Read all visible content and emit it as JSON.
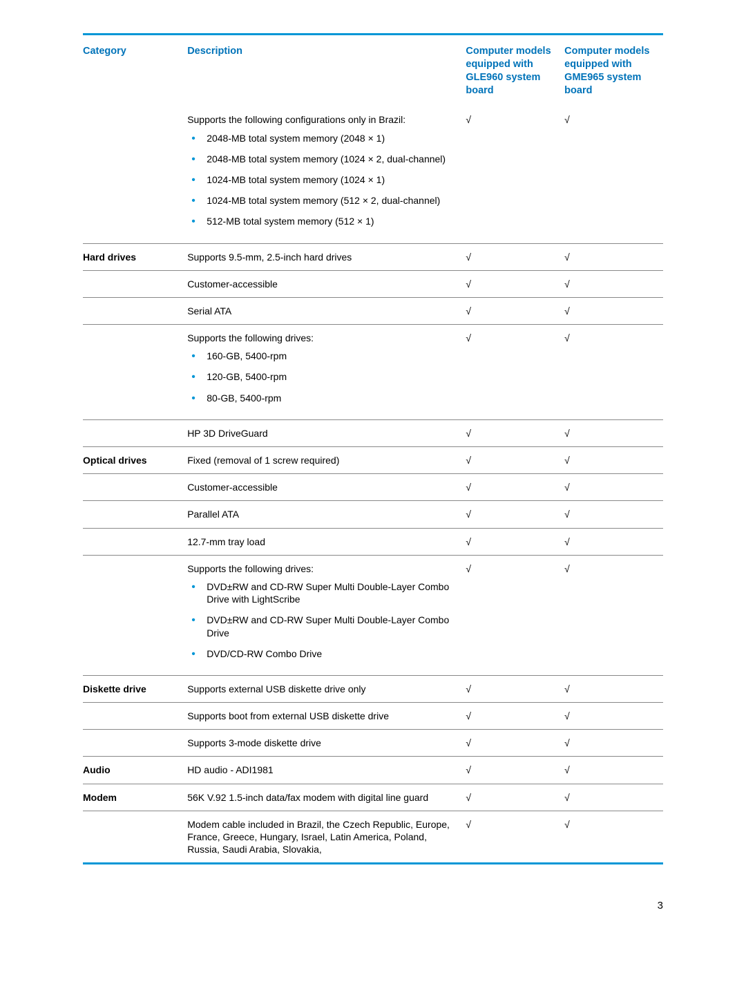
{
  "colors": {
    "accent": "#0096d6",
    "header_text": "#0073b9",
    "border_gray": "#888888",
    "text": "#000000",
    "background": "#ffffff"
  },
  "check_mark": "√",
  "headers": {
    "category": "Category",
    "description": "Description",
    "model1": "Computer models equipped with GLE960 system board",
    "model2": "Computer models equipped with GME965 system board"
  },
  "rows": [
    {
      "category": "",
      "desc": "Supports the following configurations only in Brazil:",
      "bullets": [
        "2048-MB total system memory (2048 × 1)",
        "2048-MB total system memory (1024 × 2, dual-channel)",
        "1024-MB total system memory (1024 × 1)",
        "1024-MB total system memory (512 × 2, dual-channel)",
        "512-MB total system memory (512 × 1)"
      ],
      "m1": "√",
      "m2": "√",
      "sep": false
    },
    {
      "category": "Hard drives",
      "desc": "Supports 9.5-mm, 2.5-inch hard drives",
      "m1": "√",
      "m2": "√",
      "sep": true
    },
    {
      "category": "",
      "desc": "Customer-accessible",
      "m1": "√",
      "m2": "√",
      "sep": true
    },
    {
      "category": "",
      "desc": "Serial ATA",
      "m1": "√",
      "m2": "√",
      "sep": true
    },
    {
      "category": "",
      "desc": "Supports the following drives:",
      "bullets": [
        "160-GB, 5400-rpm",
        "120-GB, 5400-rpm",
        "80-GB, 5400-rpm"
      ],
      "m1": "√",
      "m2": "√",
      "sep": true
    },
    {
      "category": "",
      "desc": "HP 3D DriveGuard",
      "m1": "√",
      "m2": "√",
      "sep": true
    },
    {
      "category": "Optical drives",
      "desc": "Fixed (removal of 1 screw required)",
      "m1": "√",
      "m2": "√",
      "sep": true
    },
    {
      "category": "",
      "desc": "Customer-accessible",
      "m1": "√",
      "m2": "√",
      "sep": true
    },
    {
      "category": "",
      "desc": "Parallel ATA",
      "m1": "√",
      "m2": "√",
      "sep": true
    },
    {
      "category": "",
      "desc": "12.7-mm tray load",
      "m1": "√",
      "m2": "√",
      "sep": true
    },
    {
      "category": "",
      "desc": "Supports the following drives:",
      "bullets": [
        "DVD±RW and CD-RW Super Multi Double-Layer Combo Drive with LightScribe",
        "DVD±RW and CD-RW Super Multi Double-Layer Combo Drive",
        "DVD/CD-RW Combo Drive"
      ],
      "m1": "√",
      "m2": "√",
      "sep": true
    },
    {
      "category": "Diskette drive",
      "desc": "Supports external USB diskette drive only",
      "m1": "√",
      "m2": "√",
      "sep": true
    },
    {
      "category": "",
      "desc": "Supports boot from external USB diskette drive",
      "m1": "√",
      "m2": "√",
      "sep": true
    },
    {
      "category": "",
      "desc": "Supports 3-mode diskette drive",
      "m1": "√",
      "m2": "√",
      "sep": true
    },
    {
      "category": "Audio",
      "desc": "HD audio - ADI1981",
      "m1": "√",
      "m2": "√",
      "sep": true
    },
    {
      "category": "Modem",
      "desc": "56K V.92 1.5-inch data/fax modem with digital line guard",
      "m1": "√",
      "m2": "√",
      "sep": true
    },
    {
      "category": "",
      "desc": "Modem cable included in Brazil, the Czech Republic, Europe, France, Greece, Hungary, Israel, Latin America, Poland, Russia, Saudi Arabia, Slovakia,",
      "m1": "√",
      "m2": "√",
      "sep": true
    }
  ],
  "page_number": "3"
}
